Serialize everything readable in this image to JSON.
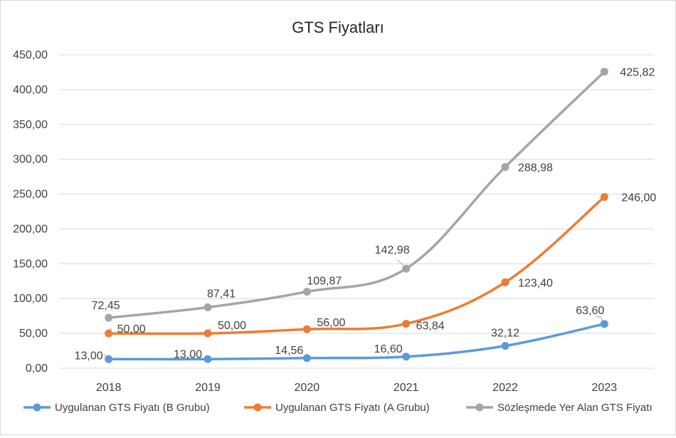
{
  "chart_data": {
    "type": "line",
    "title": "GTS Fiyatları",
    "xlabel": "",
    "ylabel": "",
    "categories": [
      "2018",
      "2019",
      "2020",
      "2021",
      "2022",
      "2023"
    ],
    "ylim": [
      0,
      450
    ],
    "y_ticks": [
      0,
      50,
      100,
      150,
      200,
      250,
      300,
      350,
      400,
      450
    ],
    "y_tick_labels": [
      "0,00",
      "50,00",
      "100,00",
      "150,00",
      "200,00",
      "250,00",
      "300,00",
      "350,00",
      "400,00",
      "450,00"
    ],
    "grid": true,
    "legend_position": "bottom",
    "series": [
      {
        "name": "Uygulanan GTS Fiyatı (B Grubu)",
        "color": "#5b9bd5",
        "values": [
          13.0,
          13.0,
          14.56,
          16.6,
          32.12,
          63.6
        ],
        "labels": [
          "13,00",
          "13,00",
          "14,56",
          "16,60",
          "32,12",
          "63,60"
        ]
      },
      {
        "name": "Uygulanan GTS Fiyatı (A Grubu)",
        "color": "#ed7d31",
        "values": [
          50.0,
          50.0,
          56.0,
          63.84,
          123.4,
          246.0
        ],
        "labels": [
          "50,00",
          "50,00",
          "56,00",
          "63,84",
          "123,40",
          "246,00"
        ]
      },
      {
        "name": "Sözleşmede Yer Alan GTS Fiyatı",
        "color": "#a5a5a5",
        "values": [
          72.45,
          87.41,
          109.87,
          142.98,
          288.98,
          425.82
        ],
        "labels": [
          "72,45",
          "87,41",
          "109,87",
          "142,98",
          "288,98",
          "425,82"
        ]
      }
    ]
  }
}
